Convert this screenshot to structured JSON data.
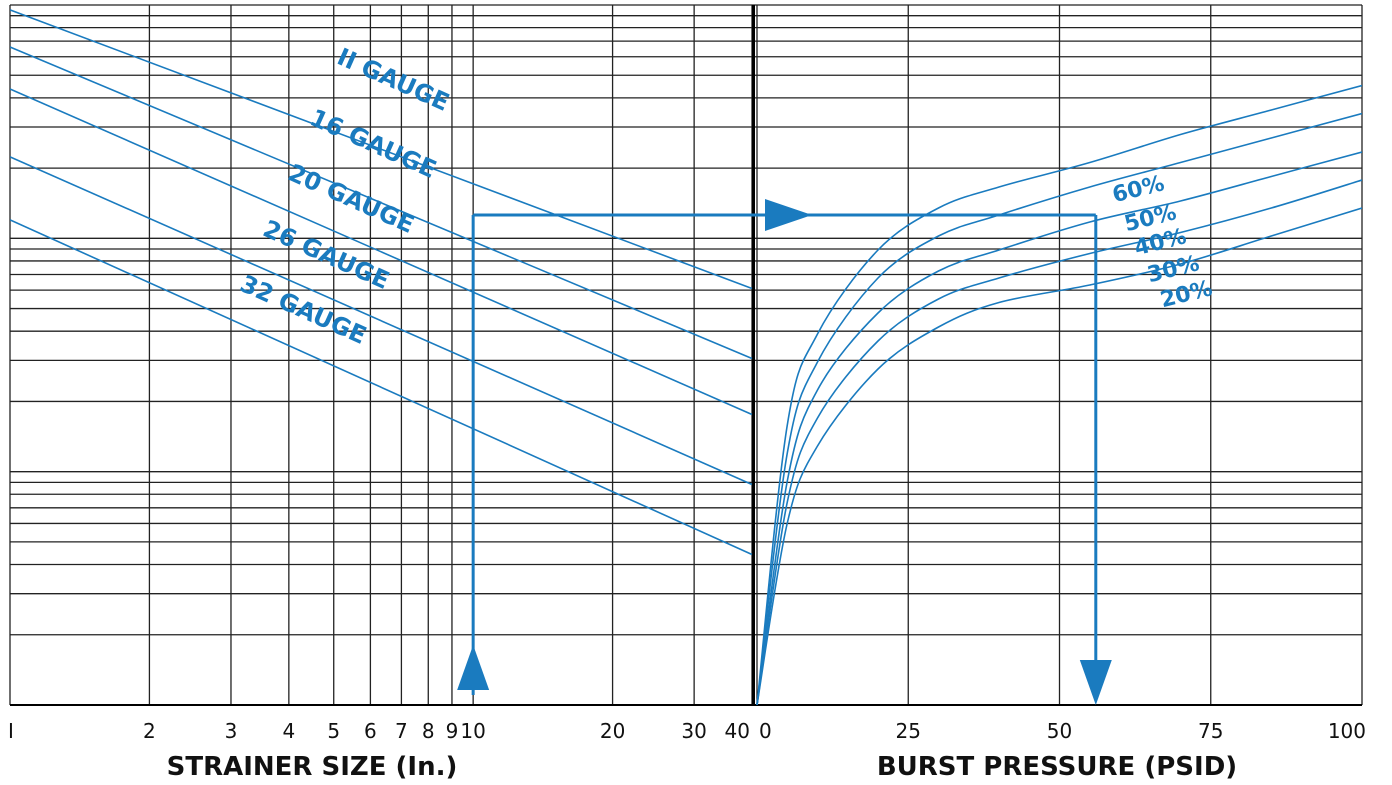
{
  "colors": {
    "curve": "#1a7bbf",
    "arrow": "#1a7bbf",
    "grid": "#222222"
  },
  "chart_data": [
    {
      "type": "line",
      "scale": "log",
      "xlabel": "STRAINER SIZE (In.)",
      "xlim": [
        1,
        40
      ],
      "x_ticks": [
        1,
        2,
        3,
        4,
        5,
        6,
        7,
        8,
        9,
        10,
        20,
        30,
        40
      ],
      "x_tick_labels": [
        "I",
        "2",
        "3",
        "4",
        "5",
        "6",
        "7",
        "8",
        "9",
        "10",
        "20",
        "30",
        "40"
      ],
      "series": [
        {
          "name": "II GAUGE",
          "x": [
            1,
            40
          ],
          "y": [
            0.993,
            0.595
          ]
        },
        {
          "name": "16 GAUGE",
          "x": [
            1,
            40
          ],
          "y": [
            0.94,
            0.495
          ]
        },
        {
          "name": "20 GAUGE",
          "x": [
            1,
            40
          ],
          "y": [
            0.88,
            0.415
          ]
        },
        {
          "name": "26 GAUGE",
          "x": [
            1,
            40
          ],
          "y": [
            0.783,
            0.315
          ]
        },
        {
          "name": "32 GAUGE",
          "x": [
            1,
            40
          ],
          "y": [
            0.693,
            0.215
          ]
        }
      ]
    },
    {
      "type": "line",
      "xlabel": "BURST PRESSURE (PSID)",
      "xlim": [
        0,
        100
      ],
      "x_ticks": [
        0,
        25,
        50,
        75,
        100
      ],
      "x_tick_labels": [
        "0",
        "25",
        "50",
        "75",
        "100"
      ],
      "series": [
        {
          "name": "60%",
          "x": [
            0,
            5,
            10,
            20,
            30,
            40,
            55,
            70,
            85,
            100
          ],
          "y": [
            0,
            0.4,
            0.53,
            0.65,
            0.71,
            0.74,
            0.775,
            0.815,
            0.85,
            0.885
          ]
        },
        {
          "name": "50%",
          "x": [
            0,
            5,
            10,
            20,
            30,
            40,
            55,
            70,
            85,
            100
          ],
          "y": [
            0,
            0.36,
            0.49,
            0.61,
            0.67,
            0.7,
            0.74,
            0.775,
            0.81,
            0.845
          ]
        },
        {
          "name": "40%",
          "x": [
            0,
            5,
            10,
            20,
            30,
            40,
            55,
            70,
            85,
            100
          ],
          "y": [
            0,
            0.32,
            0.45,
            0.56,
            0.62,
            0.65,
            0.69,
            0.72,
            0.755,
            0.79
          ]
        },
        {
          "name": "30%",
          "x": [
            0,
            5,
            10,
            20,
            30,
            40,
            55,
            70,
            85,
            100
          ],
          "y": [
            0,
            0.29,
            0.41,
            0.52,
            0.58,
            0.61,
            0.645,
            0.675,
            0.71,
            0.75
          ]
        },
        {
          "name": "20%",
          "x": [
            0,
            5,
            10,
            20,
            30,
            40,
            55,
            70,
            85,
            100
          ],
          "y": [
            0,
            0.26,
            0.37,
            0.48,
            0.54,
            0.575,
            0.6,
            0.63,
            0.67,
            0.71
          ]
        }
      ]
    }
  ],
  "example_path": {
    "strainer_size": 10,
    "level": 0.7,
    "burst_pressure": 56
  }
}
